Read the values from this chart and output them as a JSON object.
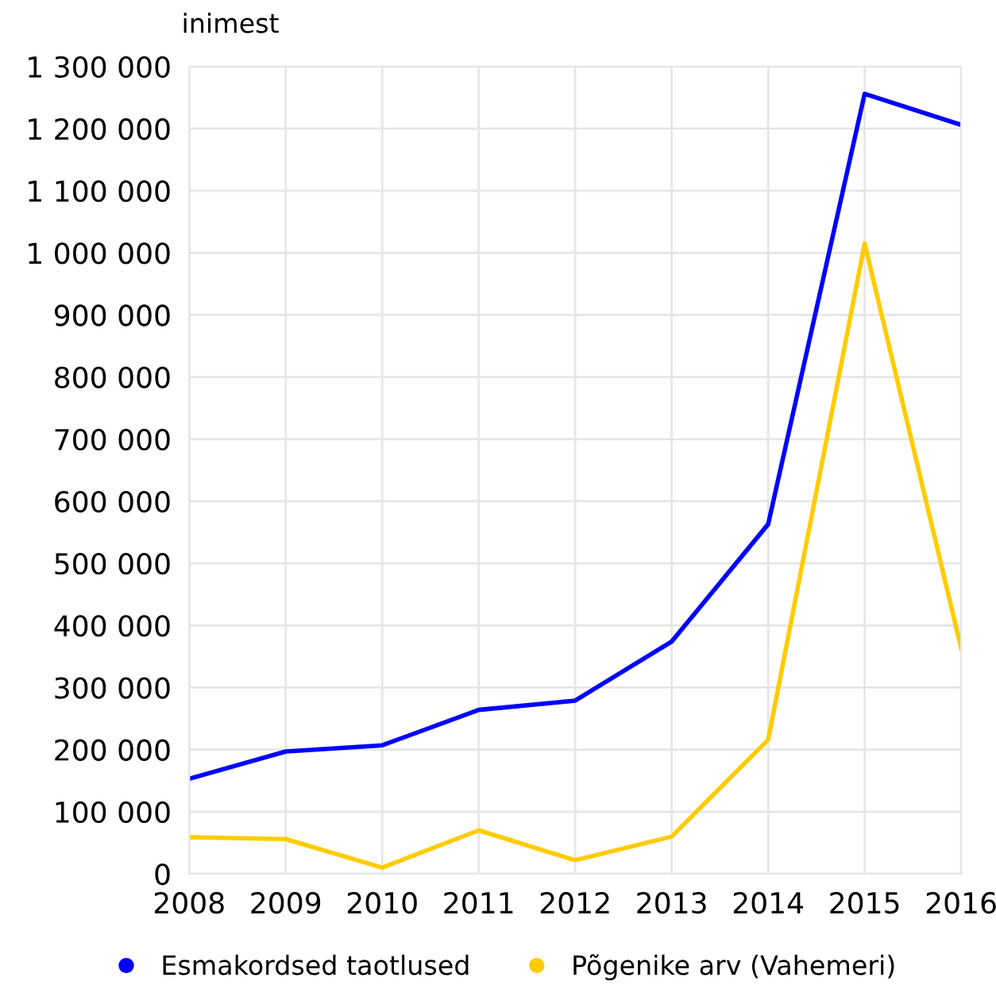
{
  "chart_data": {
    "type": "line",
    "ylabel": "inimest",
    "x": [
      2008,
      2009,
      2010,
      2011,
      2012,
      2013,
      2014,
      2015,
      2016
    ],
    "xlim": [
      2008,
      2016
    ],
    "xticks": [
      2008,
      2009,
      2010,
      2011,
      2012,
      2013,
      2014,
      2015,
      2016
    ],
    "ylim": [
      0,
      1300000
    ],
    "yticks": [
      {
        "value": 0,
        "label": "0"
      },
      {
        "value": 100000,
        "label": "100 000"
      },
      {
        "value": 200000,
        "label": "200 000"
      },
      {
        "value": 300000,
        "label": "300 000"
      },
      {
        "value": 400000,
        "label": "400 000"
      },
      {
        "value": 500000,
        "label": "500 000"
      },
      {
        "value": 600000,
        "label": "600 000"
      },
      {
        "value": 700000,
        "label": "700 000"
      },
      {
        "value": 800000,
        "label": "800 000"
      },
      {
        "value": 900000,
        "label": "900 000"
      },
      {
        "value": 1000000,
        "label": "1 000 000"
      },
      {
        "value": 1100000,
        "label": "1 100 000"
      },
      {
        "value": 1200000,
        "label": "1 200 000"
      },
      {
        "value": 1300000,
        "label": "1 300 000"
      }
    ],
    "grid": true,
    "legend": "bottom",
    "marker": "none",
    "line_style": "solid",
    "series": [
      {
        "name": "Esmakordsed taotlused",
        "color": "#0000ff",
        "values": [
          153000,
          197000,
          207000,
          264000,
          279000,
          374000,
          563000,
          1256000,
          1206000
        ]
      },
      {
        "name": "Põgenike arv (Vahemeri)",
        "color": "#ffcc00",
        "values": [
          59000,
          56000,
          10000,
          70000,
          22000,
          60000,
          216000,
          1015000,
          363000
        ]
      }
    ]
  }
}
